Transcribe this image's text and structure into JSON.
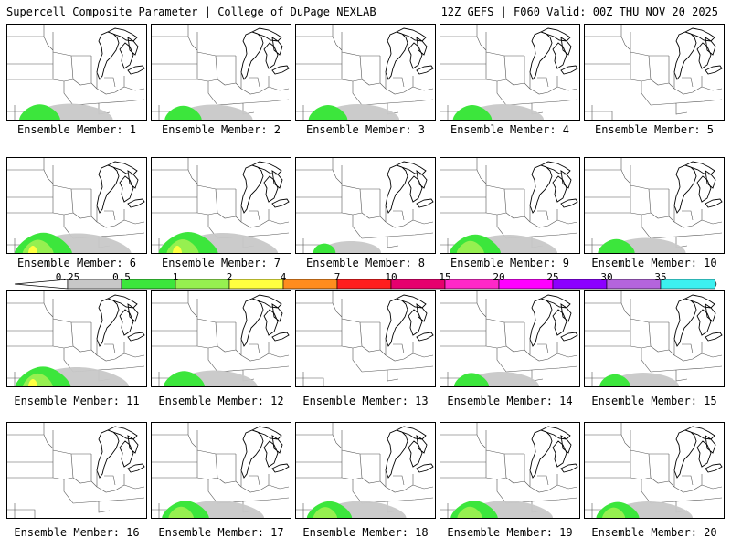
{
  "header": {
    "title": "Supercell Composite Parameter | College of DuPage NEXLAB",
    "run_info": "12Z GEFS | F060 Valid: 00Z THU NOV 20 2025"
  },
  "panels": [
    {
      "label": "Ensemble Member: 1",
      "intensity": 0.55
    },
    {
      "label": "Ensemble Member: 2",
      "intensity": 0.45
    },
    {
      "label": "Ensemble Member: 3",
      "intensity": 0.5
    },
    {
      "label": "Ensemble Member: 4",
      "intensity": 0.5
    },
    {
      "label": "Ensemble Member: 5",
      "intensity": 0.0
    },
    {
      "label": "Ensemble Member: 6",
      "intensity": 0.95
    },
    {
      "label": "Ensemble Member: 7",
      "intensity": 1.0
    },
    {
      "label": "Ensemble Member: 8",
      "intensity": 0.1
    },
    {
      "label": "Ensemble Member: 9",
      "intensity": 0.8
    },
    {
      "label": "Ensemble Member: 10",
      "intensity": 0.45
    },
    {
      "label": "Ensemble Member: 11",
      "intensity": 0.9
    },
    {
      "label": "Ensemble Member: 12",
      "intensity": 0.55
    },
    {
      "label": "Ensemble Member: 13",
      "intensity": 0.0
    },
    {
      "label": "Ensemble Member: 14",
      "intensity": 0.4
    },
    {
      "label": "Ensemble Member: 15",
      "intensity": 0.3
    },
    {
      "label": "Ensemble Member: 16",
      "intensity": 0.0
    },
    {
      "label": "Ensemble Member: 17",
      "intensity": 0.7
    },
    {
      "label": "Ensemble Member: 18",
      "intensity": 0.65
    },
    {
      "label": "Ensemble Member: 19",
      "intensity": 0.7
    },
    {
      "label": "Ensemble Member: 20",
      "intensity": 0.6
    }
  ],
  "colorbar": {
    "ticks": [
      "0.25",
      "0.5",
      "1",
      "2",
      "4",
      "7",
      "10",
      "15",
      "20",
      "25",
      "30",
      "35"
    ],
    "colors": [
      "#c8c8c8",
      "#3ce63c",
      "#96f050",
      "#ffff40",
      "#ff8c1e",
      "#ff1e1e",
      "#e6006e",
      "#ff28c8",
      "#ff00ff",
      "#8c00ff",
      "#b464dc",
      "#3cf0f0"
    ]
  }
}
